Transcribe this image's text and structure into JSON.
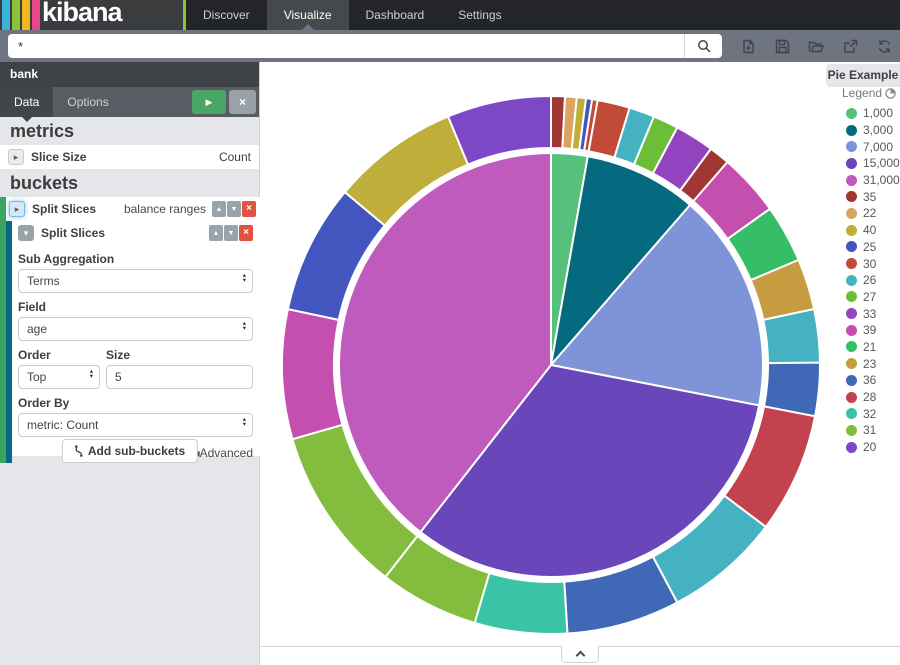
{
  "brand": {
    "name": "kibana",
    "stripe_colors": [
      "#39b3d7",
      "#8ac339",
      "#efb81f",
      "#e9468c"
    ]
  },
  "nav": {
    "items": [
      {
        "label": "Discover",
        "active": false
      },
      {
        "label": "Visualize",
        "active": true
      },
      {
        "label": "Dashboard",
        "active": false
      },
      {
        "label": "Settings",
        "active": false
      }
    ]
  },
  "querybar": {
    "query": "*",
    "icons": [
      "new-document",
      "save",
      "open-folder",
      "export",
      "refresh"
    ]
  },
  "sidebar": {
    "index_pattern": "bank",
    "tabs": [
      {
        "label": "Data",
        "active": true
      },
      {
        "label": "Options",
        "active": false
      }
    ],
    "metrics": {
      "heading": "metrics",
      "slice_size": {
        "label": "Slice Size",
        "value": "Count"
      }
    },
    "buckets": {
      "heading": "buckets",
      "bucket": {
        "label": "Split Slices",
        "value": "balance ranges"
      },
      "sub_bucket": {
        "label": "Split Slices",
        "sub_aggregation": {
          "label": "Sub Aggregation",
          "value": "Terms"
        },
        "field": {
          "label": "Field",
          "value": "age"
        },
        "order": {
          "label": "Order",
          "value": "Top"
        },
        "size": {
          "label": "Size",
          "value": "5"
        },
        "order_by": {
          "label": "Order By",
          "value": "metric: Count"
        }
      },
      "advanced_label": "Advanced",
      "add_sub_buckets_label": "Add sub-buckets"
    }
  },
  "viz": {
    "title": "Pie Example",
    "legend_label": "Legend"
  },
  "chart_data": {
    "type": "pie",
    "style": "sunburst-donut",
    "title": "Pie Example",
    "inner_ring_field": "balance ranges",
    "outer_ring_field": "age (Top 5 by Count)",
    "legend_position": "right",
    "colors": {
      "1,000": "#57c17b",
      "3,000": "#056a80",
      "7,000": "#7e93d8",
      "15,000": "#6946b9",
      "31,000": "#c05bbe",
      "35": "#a03734",
      "22": "#dba45f",
      "40": "#bfae3a",
      "25": "#4356c0",
      "30": "#c24a38",
      "26": "#45b2c2",
      "27": "#6cbe38",
      "33": "#9343c0",
      "39": "#c44fae",
      "21": "#35bd68",
      "23": "#c79b3f",
      "36": "#3f68b6",
      "28": "#c4424d",
      "32": "#3bc3a8",
      "31": "#84bd3e",
      "20": "#7d48c6"
    },
    "rings": [
      {
        "name": "balance ranges",
        "slices": [
          {
            "label": "1,000",
            "start": 0,
            "end": 10,
            "percent": 2.8
          },
          {
            "label": "3,000",
            "start": 10,
            "end": 41,
            "percent": 8.6
          },
          {
            "label": "7,000",
            "start": 41,
            "end": 101,
            "percent": 16.7
          },
          {
            "label": "15,000",
            "start": 101,
            "end": 218,
            "percent": 32.5
          },
          {
            "label": "31,000",
            "start": 218,
            "end": 360,
            "percent": 39.4
          }
        ]
      },
      {
        "name": "age",
        "slices": [
          {
            "label": "35",
            "parent": "1,000",
            "start": 0,
            "end": 3,
            "percent": 0.8
          },
          {
            "label": "22",
            "parent": "1,000",
            "start": 3,
            "end": 5.5,
            "percent": 0.7
          },
          {
            "label": "40",
            "parent": "1,000",
            "start": 5.5,
            "end": 7.5,
            "percent": 0.6
          },
          {
            "label": "25",
            "parent": "1,000",
            "start": 7.5,
            "end": 8.8,
            "percent": 0.4
          },
          {
            "label": "30",
            "parent": "1,000",
            "start": 8.8,
            "end": 10,
            "percent": 0.3
          },
          {
            "label": "30",
            "parent": "3,000",
            "start": 10,
            "end": 17,
            "percent": 1.9
          },
          {
            "label": "26",
            "parent": "3,000",
            "start": 17,
            "end": 22.5,
            "percent": 1.5
          },
          {
            "label": "27",
            "parent": "3,000",
            "start": 22.5,
            "end": 28,
            "percent": 1.5
          },
          {
            "label": "33",
            "parent": "3,000",
            "start": 28,
            "end": 36.5,
            "percent": 2.4
          },
          {
            "label": "35",
            "parent": "3,000",
            "start": 36.5,
            "end": 41,
            "percent": 1.3
          },
          {
            "label": "39",
            "parent": "7,000",
            "start": 41,
            "end": 54.5,
            "percent": 3.8
          },
          {
            "label": "21",
            "parent": "7,000",
            "start": 54.5,
            "end": 67,
            "percent": 3.5
          },
          {
            "label": "23",
            "parent": "7,000",
            "start": 67,
            "end": 78,
            "percent": 3.1
          },
          {
            "label": "26",
            "parent": "7,000",
            "start": 78,
            "end": 89.5,
            "percent": 3.2
          },
          {
            "label": "36",
            "parent": "7,000",
            "start": 89.5,
            "end": 101,
            "percent": 3.2
          },
          {
            "label": "28",
            "parent": "15,000",
            "start": 101,
            "end": 127,
            "percent": 7.2
          },
          {
            "label": "26",
            "parent": "15,000",
            "start": 127,
            "end": 152,
            "percent": 6.9
          },
          {
            "label": "36",
            "parent": "15,000",
            "start": 152,
            "end": 176.5,
            "percent": 6.8
          },
          {
            "label": "32",
            "parent": "15,000",
            "start": 176.5,
            "end": 196.5,
            "percent": 5.6
          },
          {
            "label": "31",
            "parent": "15,000",
            "start": 196.5,
            "end": 218,
            "percent": 6.0
          },
          {
            "label": "31",
            "parent": "31,000",
            "start": 218,
            "end": 254,
            "percent": 10.0
          },
          {
            "label": "39",
            "parent": "31,000",
            "start": 254,
            "end": 282,
            "percent": 7.8
          },
          {
            "label": "25",
            "parent": "31,000",
            "start": 282,
            "end": 310,
            "percent": 7.8
          },
          {
            "label": "40",
            "parent": "31,000",
            "start": 310,
            "end": 337.5,
            "percent": 7.6
          },
          {
            "label": "20",
            "parent": "31,000",
            "start": 337.5,
            "end": 360,
            "percent": 6.3
          }
        ]
      }
    ],
    "legend": [
      "1,000",
      "3,000",
      "7,000",
      "15,000",
      "31,000",
      "35",
      "22",
      "40",
      "25",
      "30",
      "26",
      "27",
      "33",
      "39",
      "21",
      "23",
      "36",
      "28",
      "32",
      "31",
      "20"
    ]
  }
}
